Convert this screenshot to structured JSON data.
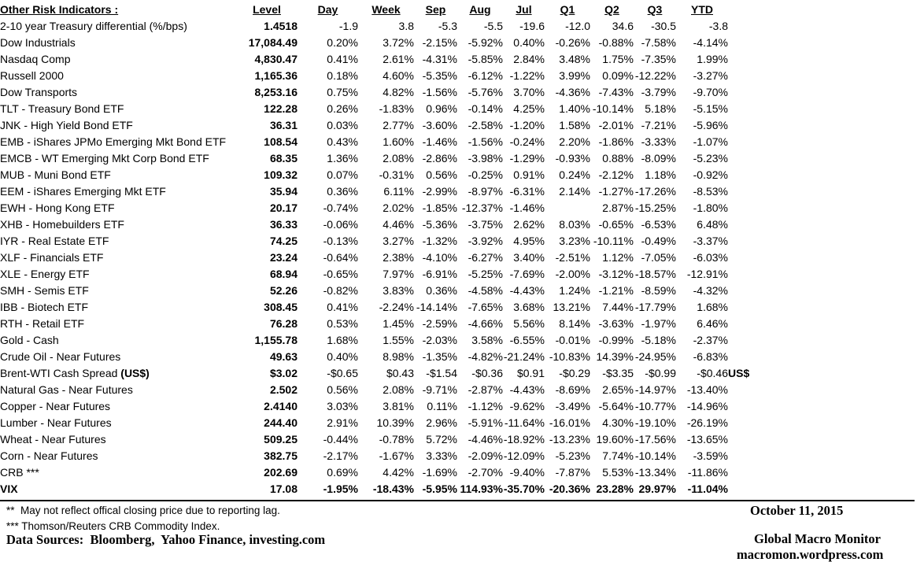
{
  "table": {
    "title": "Other Risk Indicators :",
    "columns": [
      "Level",
      "Day",
      "Week",
      "Sep",
      "Aug",
      "Jul",
      "Q1",
      "Q2",
      "Q3",
      "YTD"
    ],
    "rows": [
      {
        "label": "2-10 year Treasury differential (%/bps)",
        "values": [
          "1.4518",
          "-1.9",
          "3.8",
          "-5.3",
          "-5.5",
          "-19.6",
          "-12.0",
          "34.6",
          "-30.5",
          "-3.8"
        ],
        "bold": false,
        "suffix": ""
      },
      {
        "label": "Dow Industrials",
        "values": [
          "17,084.49",
          "0.20%",
          "3.72%",
          "-2.15%",
          "-5.92%",
          "0.40%",
          "-0.26%",
          "-0.88%",
          "-7.58%",
          "-4.14%"
        ],
        "bold": false,
        "suffix": ""
      },
      {
        "label": "Nasdaq Comp",
        "values": [
          "4,830.47",
          "0.41%",
          "2.61%",
          "-4.31%",
          "-5.85%",
          "2.84%",
          "3.48%",
          "1.75%",
          "-7.35%",
          "1.99%"
        ],
        "bold": false,
        "suffix": ""
      },
      {
        "label": "Russell 2000",
        "values": [
          "1,165.36",
          "0.18%",
          "4.60%",
          "-5.35%",
          "-6.12%",
          "-1.22%",
          "3.99%",
          "0.09%",
          "-12.22%",
          "-3.27%"
        ],
        "bold": false,
        "suffix": ""
      },
      {
        "label": "Dow Transports",
        "values": [
          "8,253.16",
          "0.75%",
          "4.82%",
          "-1.56%",
          "-5.76%",
          "3.70%",
          "-4.36%",
          "-7.43%",
          "-3.79%",
          "-9.70%"
        ],
        "bold": false,
        "suffix": ""
      },
      {
        "label": "TLT - Treasury Bond ETF",
        "values": [
          "122.28",
          "0.26%",
          "-1.83%",
          "0.96%",
          "-0.14%",
          "4.25%",
          "1.40%",
          "-10.14%",
          "5.18%",
          "-5.15%"
        ],
        "bold": false,
        "suffix": ""
      },
      {
        "label": "JNK - High Yield Bond ETF",
        "values": [
          "36.31",
          "0.03%",
          "2.77%",
          "-3.60%",
          "-2.58%",
          "-1.20%",
          "1.58%",
          "-2.01%",
          "-7.21%",
          "-5.96%"
        ],
        "bold": false,
        "suffix": ""
      },
      {
        "label": "EMB - iShares JPMo Emerging Mkt Bond ETF",
        "values": [
          "108.54",
          "0.43%",
          "1.60%",
          "-1.46%",
          "-1.56%",
          "-0.24%",
          "2.20%",
          "-1.86%",
          "-3.33%",
          "-1.07%"
        ],
        "bold": false,
        "suffix": ""
      },
      {
        "label": "EMCB - WT Emerging Mkt Corp Bond ETF",
        "values": [
          "68.35",
          "1.36%",
          "2.08%",
          "-2.86%",
          "-3.98%",
          "-1.29%",
          "-0.93%",
          "0.88%",
          "-8.09%",
          "-5.23%"
        ],
        "bold": false,
        "suffix": ""
      },
      {
        "label": "MUB - Muni Bond ETF",
        "values": [
          "109.32",
          "0.07%",
          "-0.31%",
          "0.56%",
          "-0.25%",
          "0.91%",
          "0.24%",
          "-2.12%",
          "1.18%",
          "-0.92%"
        ],
        "bold": false,
        "suffix": ""
      },
      {
        "label": "EEM - iShares Emerging Mkt ETF",
        "values": [
          "35.94",
          "0.36%",
          "6.11%",
          "-2.99%",
          "-8.97%",
          "-6.31%",
          "2.14%",
          "-1.27%",
          "-17.26%",
          "-8.53%"
        ],
        "bold": false,
        "suffix": ""
      },
      {
        "label": "EWH - Hong Kong ETF",
        "values": [
          "20.17",
          "-0.74%",
          "2.02%",
          "-1.85%",
          "-12.37%",
          "-1.46%",
          "",
          "2.87%",
          "-15.25%",
          "-1.80%"
        ],
        "bold": false,
        "suffix": ""
      },
      {
        "label": "XHB - Homebuilders ETF",
        "values": [
          "36.33",
          "-0.06%",
          "4.46%",
          "-5.36%",
          "-3.75%",
          "2.62%",
          "8.03%",
          "-0.65%",
          "-6.53%",
          "6.48%"
        ],
        "bold": false,
        "suffix": ""
      },
      {
        "label": "IYR - Real Estate ETF",
        "values": [
          "74.25",
          "-0.13%",
          "3.27%",
          "-1.32%",
          "-3.92%",
          "4.95%",
          "3.23%",
          "-10.11%",
          "-0.49%",
          "-3.37%"
        ],
        "bold": false,
        "suffix": ""
      },
      {
        "label": "XLF - Financials ETF",
        "values": [
          "23.24",
          "-0.64%",
          "2.38%",
          "-4.10%",
          "-6.27%",
          "3.40%",
          "-2.51%",
          "1.12%",
          "-7.05%",
          "-6.03%"
        ],
        "bold": false,
        "suffix": ""
      },
      {
        "label": "XLE - Energy ETF",
        "values": [
          "68.94",
          "-0.65%",
          "7.97%",
          "-6.91%",
          "-5.25%",
          "-7.69%",
          "-2.00%",
          "-3.12%",
          "-18.57%",
          "-12.91%"
        ],
        "bold": false,
        "suffix": ""
      },
      {
        "label": "SMH - Semis ETF",
        "values": [
          "52.26",
          "-0.82%",
          "3.83%",
          "0.36%",
          "-4.58%",
          "-4.43%",
          "1.24%",
          "-1.21%",
          "-8.59%",
          "-4.32%"
        ],
        "bold": false,
        "suffix": ""
      },
      {
        "label": "IBB - Biotech ETF",
        "values": [
          "308.45",
          "0.41%",
          "-2.24%",
          "-14.14%",
          "-7.65%",
          "3.68%",
          "13.21%",
          "7.44%",
          "-17.79%",
          "1.68%"
        ],
        "bold": false,
        "suffix": ""
      },
      {
        "label": "RTH - Retail ETF",
        "values": [
          "76.28",
          "0.53%",
          "1.45%",
          "-2.59%",
          "-4.66%",
          "5.56%",
          "8.14%",
          "-3.63%",
          "-1.97%",
          "6.46%"
        ],
        "bold": false,
        "suffix": ""
      },
      {
        "label": "Gold - Cash",
        "values": [
          "1,155.78",
          "1.68%",
          "1.55%",
          "-2.03%",
          "3.58%",
          "-6.55%",
          "-0.01%",
          "-0.99%",
          "-5.18%",
          "-2.37%"
        ],
        "bold": false,
        "suffix": ""
      },
      {
        "label": "Crude Oil - Near Futures",
        "values": [
          "49.63",
          "0.40%",
          "8.98%",
          "-1.35%",
          "-4.82%",
          "-21.24%",
          "-10.83%",
          "14.39%",
          "-24.95%",
          "-6.83%"
        ],
        "bold": false,
        "suffix": ""
      },
      {
        "label": "Brent-WTI Cash Spread ",
        "label_bold": "(US$)",
        "values": [
          "$3.02",
          "-$0.65",
          "$0.43",
          "-$1.54",
          "-$0.36",
          "$0.91",
          "-$0.29",
          "-$3.35",
          "-$0.99",
          "-$0.46"
        ],
        "bold": false,
        "suffix": "US$"
      },
      {
        "label": "Natural Gas - Near Futures",
        "values": [
          "2.502",
          "0.56%",
          "2.08%",
          "-9.71%",
          "-2.87%",
          "-4.43%",
          "-8.69%",
          "2.65%",
          "-14.97%",
          "-13.40%"
        ],
        "bold": false,
        "suffix": ""
      },
      {
        "label": "Copper - Near Futures",
        "values": [
          "2.4140",
          "3.03%",
          "3.81%",
          "0.11%",
          "-1.12%",
          "-9.62%",
          "-3.49%",
          "-5.64%",
          "-10.77%",
          "-14.96%"
        ],
        "bold": false,
        "suffix": ""
      },
      {
        "label": "Lumber - Near Futures",
        "values": [
          "244.40",
          "2.91%",
          "10.39%",
          "2.96%",
          "-5.91%",
          "-11.64%",
          "-16.01%",
          "4.30%",
          "-19.10%",
          "-26.19%"
        ],
        "bold": false,
        "suffix": ""
      },
      {
        "label": "Wheat - Near Futures",
        "values": [
          "509.25",
          "-0.44%",
          "-0.78%",
          "5.72%",
          "-4.46%",
          "-18.92%",
          "-13.23%",
          "19.60%",
          "-17.56%",
          "-13.65%"
        ],
        "bold": false,
        "suffix": ""
      },
      {
        "label": "Corn - Near Futures",
        "values": [
          "382.75",
          "-2.17%",
          "-1.67%",
          "3.33%",
          "-2.09%",
          "-12.09%",
          "-5.23%",
          "7.74%",
          "-10.14%",
          "-3.59%"
        ],
        "bold": false,
        "suffix": ""
      },
      {
        "label": "CRB ***",
        "values": [
          "202.69",
          "0.69%",
          "4.42%",
          "-1.69%",
          "-2.70%",
          "-9.40%",
          "-7.87%",
          "5.53%",
          "-13.34%",
          "-11.86%"
        ],
        "bold": false,
        "suffix": ""
      },
      {
        "label": "VIX",
        "values": [
          "17.08",
          "-1.95%",
          "-18.43%",
          "-5.95%",
          "114.93%",
          "-35.70%",
          "-20.36%",
          "23.28%",
          "29.97%",
          "-11.04%"
        ],
        "bold": true,
        "suffix": ""
      }
    ]
  },
  "footer": {
    "footnote_2star": "**  May not reflect offical closing price due to reporting lag.",
    "footnote_3star": "*** Thomson/Reuters CRB Commodity Index.",
    "sources": "Data Sources:  Bloomberg,  Yahoo Finance, investing.com",
    "date": "October 11, 2015",
    "brand": "Global Macro Monitor",
    "brand_url": "macromon.wordpress.com"
  }
}
